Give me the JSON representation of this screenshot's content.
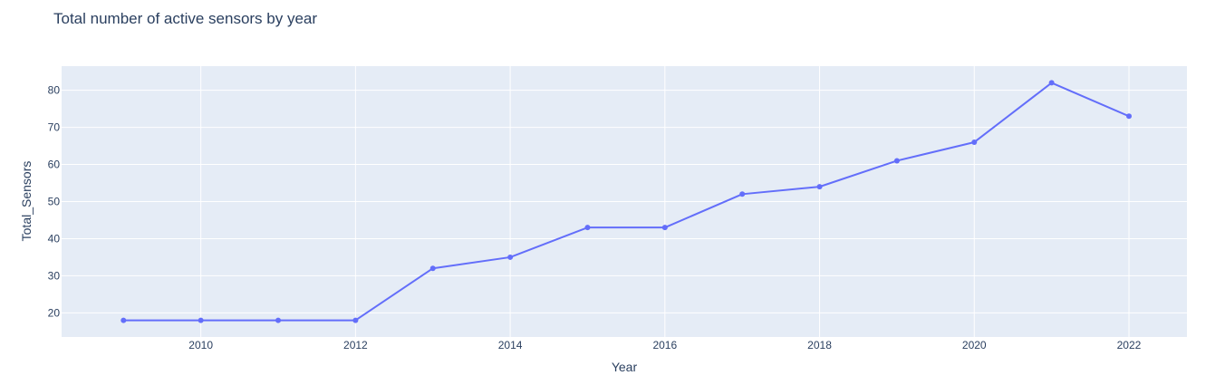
{
  "chart_data": {
    "type": "line",
    "title": "Total number of active sensors by year",
    "xlabel": "Year",
    "ylabel": "Total_Sensors",
    "x": [
      2009,
      2010,
      2011,
      2012,
      2013,
      2014,
      2015,
      2016,
      2017,
      2018,
      2019,
      2020,
      2021,
      2022
    ],
    "series": [
      {
        "values": [
          18,
          18,
          18,
          18,
          32,
          35,
          43,
          43,
          52,
          54,
          61,
          66,
          82,
          73
        ]
      }
    ],
    "xticks": [
      2010,
      2012,
      2014,
      2016,
      2018,
      2020,
      2022
    ],
    "yticks": [
      20,
      30,
      40,
      50,
      60,
      70,
      80
    ],
    "xlim": [
      2008.2,
      2022.75
    ],
    "ylim": [
      13.5,
      86.5
    ],
    "grid": true,
    "colors": {
      "line": "#636efa",
      "plot_bg": "#e5ecf6",
      "grid": "#ffffff",
      "text": "#2a3f5f"
    }
  }
}
